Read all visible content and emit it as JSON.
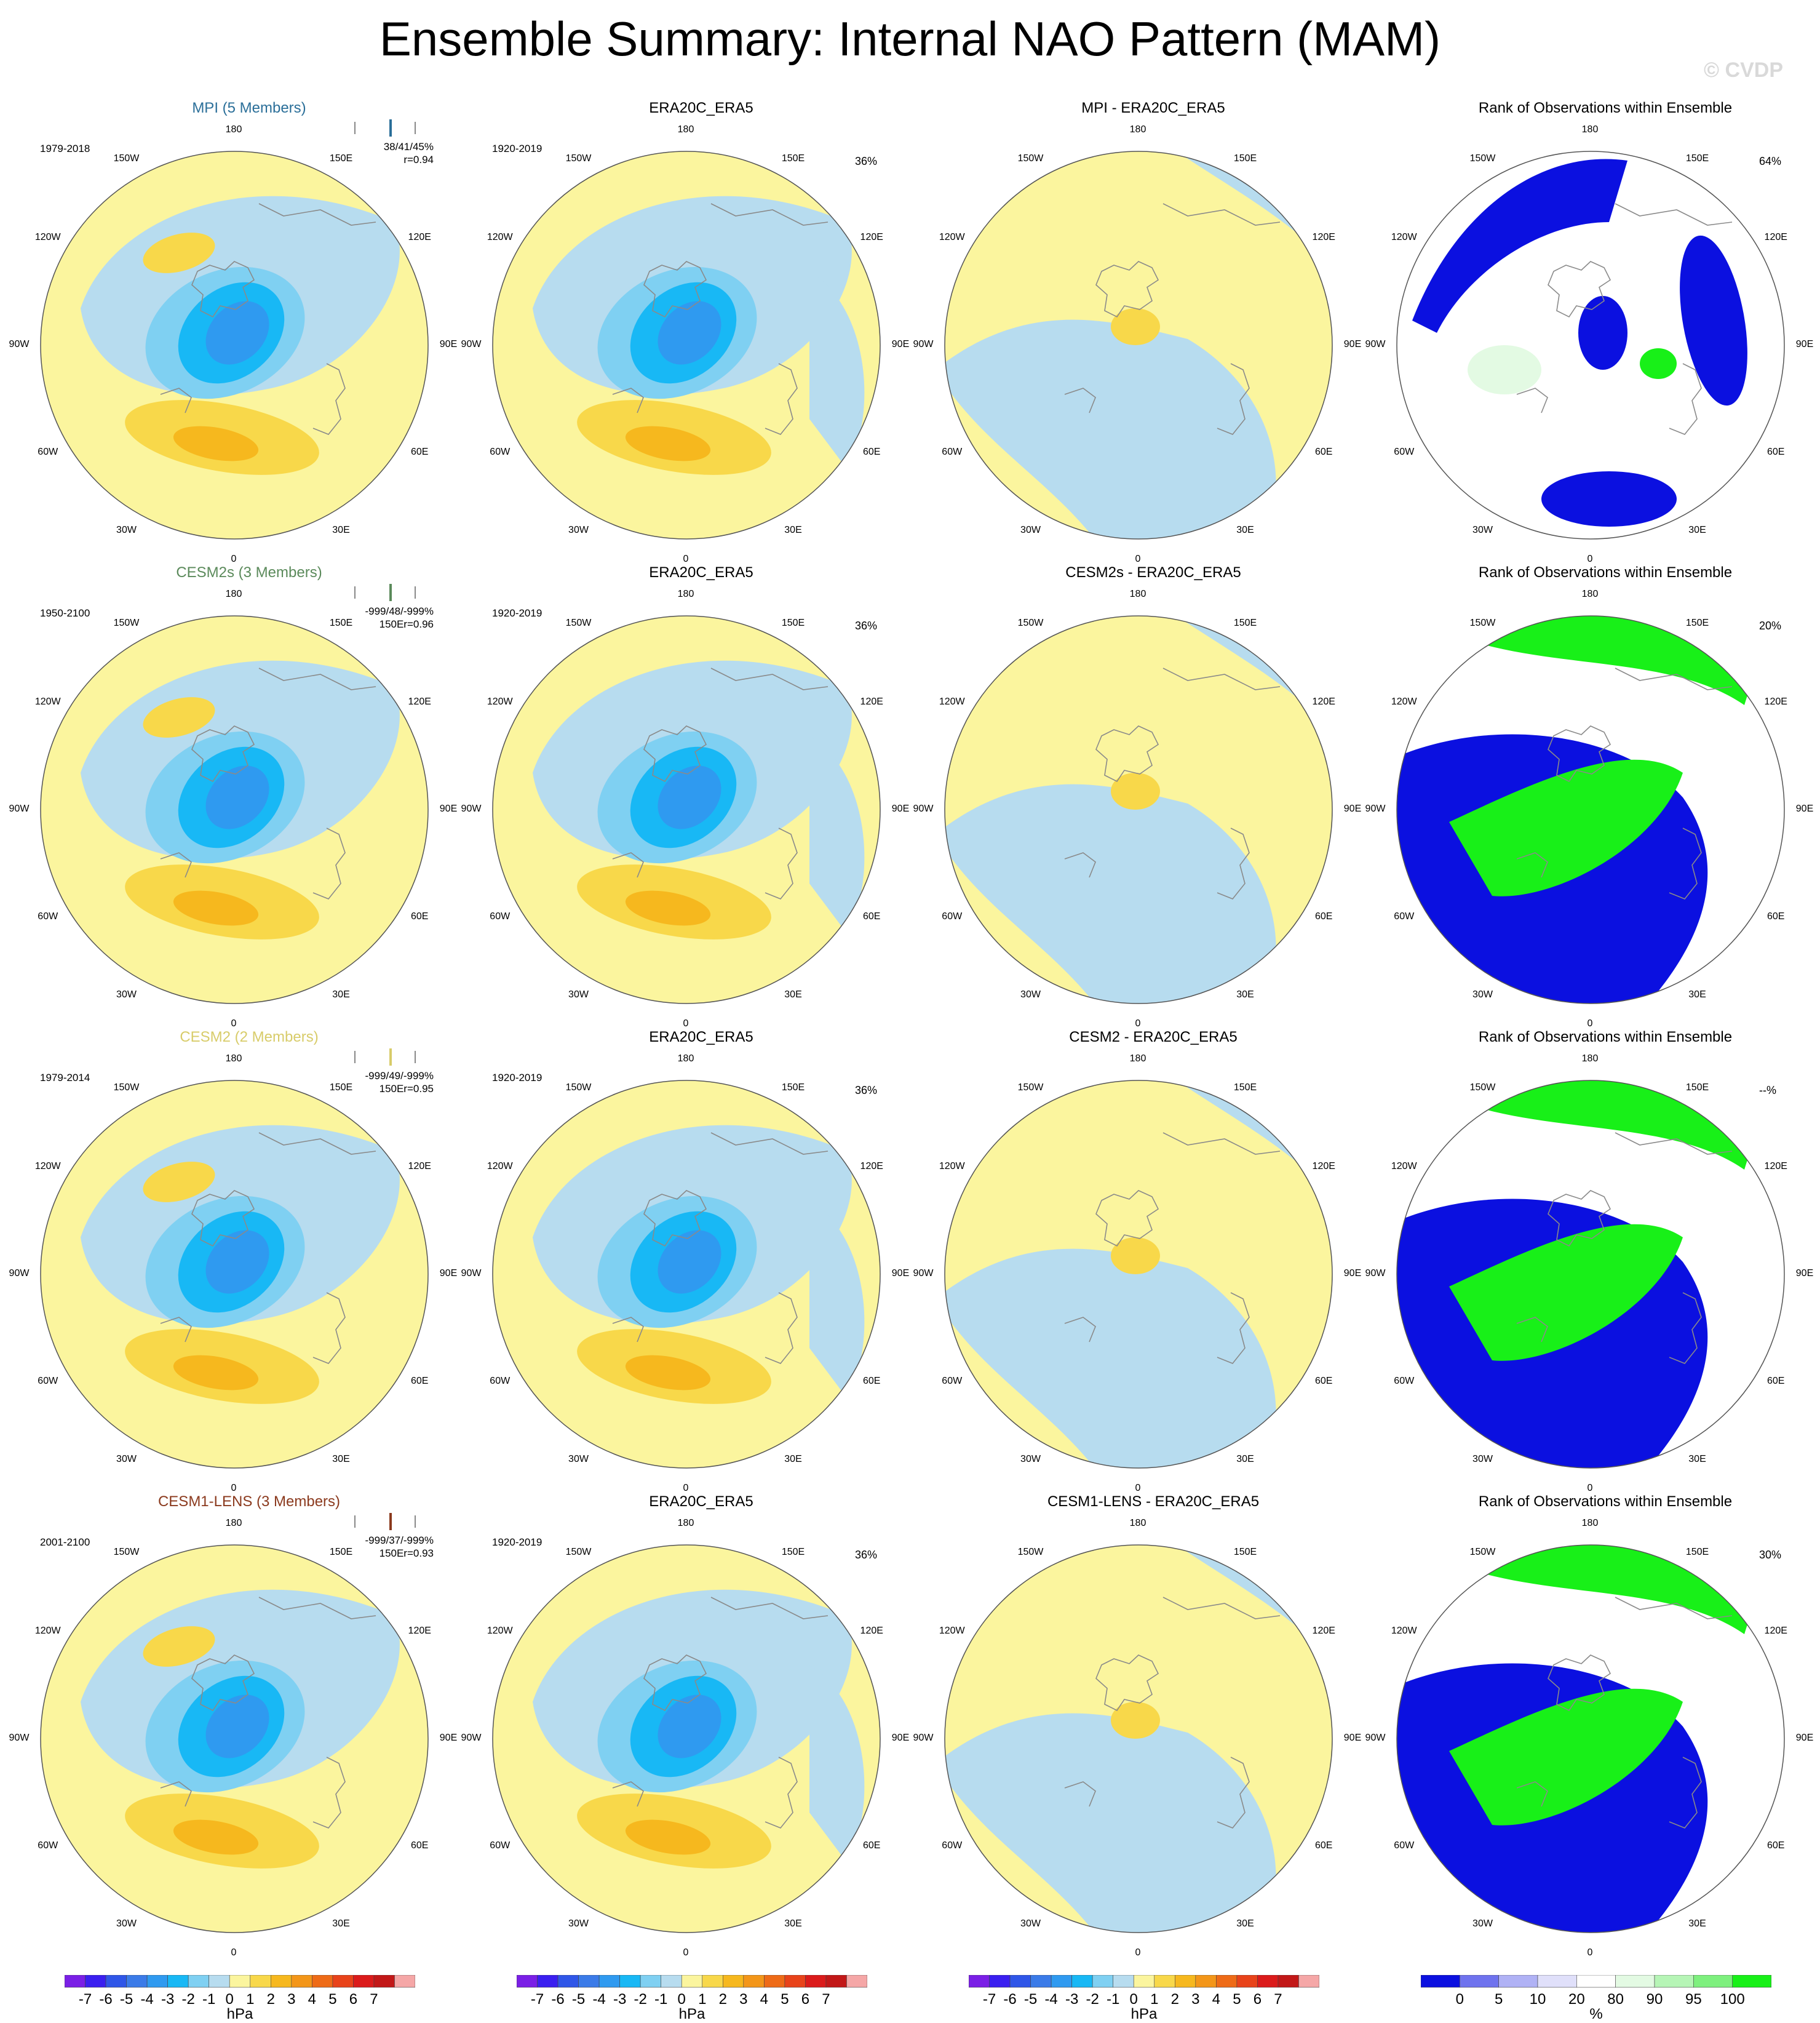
{
  "title": "Ensemble Summary: Internal NAO Pattern (MAM)",
  "watermark": "© CVDP",
  "lon_labels": [
    "180",
    "150E",
    "120E",
    "90E",
    "60E",
    "30E",
    "0",
    "30W",
    "60W",
    "90W",
    "120W",
    "150W"
  ],
  "colors": {
    "anomaly_scale": [
      "#7a1fe6",
      "#3a1ff0",
      "#2f56e8",
      "#3b7be8",
      "#2f9af0",
      "#18b8f5",
      "#7fd0f2",
      "#b7dcef",
      "#fbf59e",
      "#f8d84a",
      "#f6b81e",
      "#f39619",
      "#ee6b17",
      "#e8431a",
      "#db1b1b",
      "#c21818",
      "#f5a7a7"
    ],
    "rank_scale": [
      "#0b10e0",
      "#6f73ee",
      "#b0b2f5",
      "#e0e0fa",
      "#ffffff",
      "#e3fae3",
      "#b6f5b6",
      "#7ef07e",
      "#18f018"
    ],
    "model_title_colors": [
      "#2b6f99",
      "#5b8a5b",
      "#d8cc6a",
      "#8b3a1e"
    ]
  },
  "chart_data": [
    {
      "type": "polar-map",
      "row": 1,
      "col": 1,
      "title": "MPI (5 Members)",
      "years": "1979-2018",
      "stats": [
        "38/41/45%",
        "r=0.94"
      ],
      "variant": "model"
    },
    {
      "type": "polar-map",
      "row": 1,
      "col": 2,
      "title": "ERA20C_ERA5",
      "years": "1920-2019",
      "percent": "36%",
      "variant": "obs"
    },
    {
      "type": "polar-map",
      "row": 1,
      "col": 3,
      "title": "MPI - ERA20C_ERA5",
      "variant": "diff"
    },
    {
      "type": "polar-map",
      "row": 1,
      "col": 4,
      "title": "Rank of Observations within Ensemble",
      "percent": "64%",
      "variant": "rank"
    },
    {
      "type": "polar-map",
      "row": 2,
      "col": 1,
      "title": "CESM2s (3 Members)",
      "years": "1950-2100",
      "stats": [
        "-999/48/-999%",
        "150Er=0.96"
      ],
      "variant": "model"
    },
    {
      "type": "polar-map",
      "row": 2,
      "col": 2,
      "title": "ERA20C_ERA5",
      "years": "1920-2019",
      "percent": "36%",
      "variant": "obs"
    },
    {
      "type": "polar-map",
      "row": 2,
      "col": 3,
      "title": "CESM2s - ERA20C_ERA5",
      "variant": "diff"
    },
    {
      "type": "polar-map",
      "row": 2,
      "col": 4,
      "title": "Rank of Observations within Ensemble",
      "percent": "20%",
      "variant": "rank"
    },
    {
      "type": "polar-map",
      "row": 3,
      "col": 1,
      "title": "CESM2 (2 Members)",
      "years": "1979-2014",
      "stats": [
        "-999/49/-999%",
        "150Er=0.95"
      ],
      "variant": "model"
    },
    {
      "type": "polar-map",
      "row": 3,
      "col": 2,
      "title": "ERA20C_ERA5",
      "years": "1920-2019",
      "percent": "36%",
      "variant": "obs"
    },
    {
      "type": "polar-map",
      "row": 3,
      "col": 3,
      "title": "CESM2 - ERA20C_ERA5",
      "variant": "diff"
    },
    {
      "type": "polar-map",
      "row": 3,
      "col": 4,
      "title": "Rank of Observations within Ensemble",
      "percent": "--%",
      "variant": "rank"
    },
    {
      "type": "polar-map",
      "row": 4,
      "col": 1,
      "title": "CESM1-LENS (3 Members)",
      "years": "2001-2100",
      "stats": [
        "-999/37/-999%",
        "150Er=0.93"
      ],
      "variant": "model"
    },
    {
      "type": "polar-map",
      "row": 4,
      "col": 2,
      "title": "ERA20C_ERA5",
      "years": "1920-2019",
      "percent": "36%",
      "variant": "obs"
    },
    {
      "type": "polar-map",
      "row": 4,
      "col": 3,
      "title": "CESM1-LENS - ERA20C_ERA5",
      "variant": "diff"
    },
    {
      "type": "polar-map",
      "row": 4,
      "col": 4,
      "title": "Rank of Observations within Ensemble",
      "percent": "30%",
      "variant": "rank"
    }
  ],
  "colorbars": [
    {
      "type": "anomaly",
      "unit": "hPa",
      "ticks": [
        "-7",
        "-6",
        "-5",
        "-4",
        "-3",
        "-2",
        "-1",
        "0",
        "1",
        "2",
        "3",
        "4",
        "5",
        "6",
        "7"
      ]
    },
    {
      "type": "anomaly",
      "unit": "hPa",
      "ticks": [
        "-7",
        "-6",
        "-5",
        "-4",
        "-3",
        "-2",
        "-1",
        "0",
        "1",
        "2",
        "3",
        "4",
        "5",
        "6",
        "7"
      ]
    },
    {
      "type": "anomaly",
      "unit": "hPa",
      "ticks": [
        "-7",
        "-6",
        "-5",
        "-4",
        "-3",
        "-2",
        "-1",
        "0",
        "1",
        "2",
        "3",
        "4",
        "5",
        "6",
        "7"
      ]
    },
    {
      "type": "rank",
      "unit": "%",
      "ticks": [
        "0",
        "5",
        "10",
        "20",
        "80",
        "90",
        "95",
        "100"
      ]
    }
  ]
}
